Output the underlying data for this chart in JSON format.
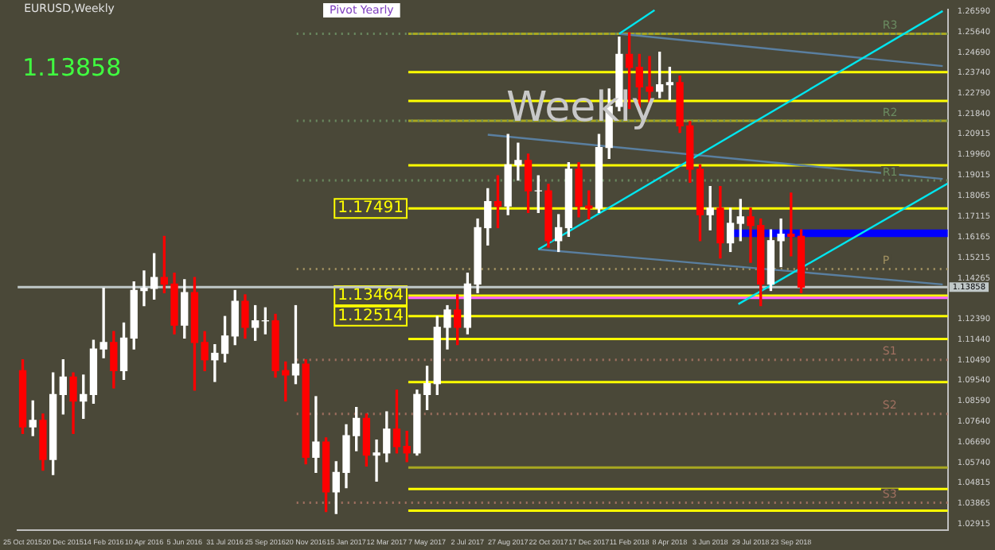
{
  "chart_data": {
    "type": "candlestick",
    "title": "EURUSD,Weekly",
    "annotations": [
      "1.13858",
      "Weekly",
      "Pivot Yearly"
    ],
    "x": [
      "2015-10-25",
      "2015-11-08",
      "2015-11-22",
      "2015-12-06",
      "2015-12-20",
      "2016-01-03",
      "2016-01-17",
      "2016-01-31",
      "2016-02-14",
      "2016-02-28",
      "2016-03-13",
      "2016-03-27",
      "2016-04-10",
      "2016-04-24",
      "2016-05-08",
      "2016-05-22",
      "2016-06-05",
      "2016-06-19",
      "2016-07-03",
      "2016-07-17",
      "2016-07-31",
      "2016-08-14",
      "2016-08-28",
      "2016-09-11",
      "2016-09-25",
      "2016-10-09",
      "2016-10-23",
      "2016-11-06",
      "2016-11-20",
      "2016-12-04",
      "2016-12-18",
      "2017-01-01",
      "2017-01-15",
      "2017-01-29",
      "2017-02-12",
      "2017-02-26",
      "2017-03-12",
      "2017-03-26",
      "2017-04-09",
      "2017-04-23",
      "2017-05-07",
      "2017-05-21",
      "2017-06-04",
      "2017-06-18",
      "2017-07-02",
      "2017-07-16",
      "2017-07-30",
      "2017-08-13",
      "2017-08-27",
      "2017-09-10",
      "2017-09-24",
      "2017-10-08",
      "2017-10-22",
      "2017-11-05",
      "2017-11-19",
      "2017-12-03",
      "2017-12-17",
      "2017-12-31",
      "2018-01-14",
      "2018-01-28",
      "2018-02-11",
      "2018-02-25",
      "2018-03-11",
      "2018-03-25",
      "2018-04-08",
      "2018-04-22",
      "2018-05-06",
      "2018-05-20",
      "2018-06-03",
      "2018-06-17",
      "2018-07-01",
      "2018-07-15",
      "2018-07-29",
      "2018-08-12",
      "2018-08-26",
      "2018-09-09",
      "2018-09-23",
      "2018-10-07"
    ],
    "ohlc": [
      [
        1.1,
        1.105,
        1.071,
        1.074
      ],
      [
        1.074,
        1.086,
        1.07,
        1.077
      ],
      [
        1.077,
        1.08,
        1.054,
        1.059
      ],
      [
        1.059,
        1.099,
        1.052,
        1.089
      ],
      [
        1.089,
        1.105,
        1.08,
        1.097
      ],
      [
        1.097,
        1.099,
        1.071,
        1.086
      ],
      [
        1.086,
        1.098,
        1.078,
        1.089
      ],
      [
        1.089,
        1.114,
        1.085,
        1.11
      ],
      [
        1.11,
        1.138,
        1.106,
        1.113
      ],
      [
        1.113,
        1.118,
        1.092,
        1.1
      ],
      [
        1.1,
        1.122,
        1.096,
        1.115
      ],
      [
        1.115,
        1.141,
        1.11,
        1.137
      ],
      [
        1.137,
        1.146,
        1.13,
        1.138
      ],
      [
        1.138,
        1.154,
        1.133,
        1.143
      ],
      [
        1.143,
        1.162,
        1.136,
        1.14
      ],
      [
        1.14,
        1.145,
        1.117,
        1.121
      ],
      [
        1.121,
        1.142,
        1.115,
        1.136
      ],
      [
        1.136,
        1.143,
        1.091,
        1.113
      ],
      [
        1.113,
        1.118,
        1.1,
        1.105
      ],
      [
        1.105,
        1.112,
        1.095,
        1.108
      ],
      [
        1.108,
        1.125,
        1.104,
        1.116
      ],
      [
        1.116,
        1.137,
        1.112,
        1.132
      ],
      [
        1.132,
        1.135,
        1.115,
        1.12
      ],
      [
        1.12,
        1.13,
        1.114,
        1.123
      ],
      [
        1.123,
        1.129,
        1.117,
        1.123
      ],
      [
        1.123,
        1.126,
        1.097,
        1.1
      ],
      [
        1.1,
        1.104,
        1.086,
        1.098
      ],
      [
        1.098,
        1.13,
        1.094,
        1.103
      ],
      [
        1.103,
        1.105,
        1.057,
        1.06
      ],
      [
        1.06,
        1.088,
        1.053,
        1.067
      ],
      [
        1.067,
        1.069,
        1.035,
        1.044
      ],
      [
        1.044,
        1.058,
        1.034,
        1.053
      ],
      [
        1.053,
        1.075,
        1.046,
        1.07
      ],
      [
        1.07,
        1.083,
        1.063,
        1.078
      ],
      [
        1.078,
        1.08,
        1.056,
        1.061
      ],
      [
        1.061,
        1.068,
        1.049,
        1.062
      ],
      [
        1.062,
        1.081,
        1.058,
        1.073
      ],
      [
        1.073,
        1.091,
        1.062,
        1.065
      ],
      [
        1.065,
        1.072,
        1.058,
        1.062
      ],
      [
        1.062,
        1.091,
        1.061,
        1.089
      ],
      [
        1.089,
        1.102,
        1.082,
        1.094
      ],
      [
        1.094,
        1.125,
        1.089,
        1.12
      ],
      [
        1.12,
        1.13,
        1.11,
        1.128
      ],
      [
        1.128,
        1.135,
        1.112,
        1.12
      ],
      [
        1.12,
        1.145,
        1.117,
        1.14
      ],
      [
        1.14,
        1.17,
        1.136,
        1.166
      ],
      [
        1.166,
        1.184,
        1.158,
        1.178
      ],
      [
        1.178,
        1.19,
        1.166,
        1.176
      ],
      [
        1.176,
        1.209,
        1.172,
        1.195
      ],
      [
        1.195,
        1.205,
        1.188,
        1.197
      ],
      [
        1.197,
        1.2,
        1.173,
        1.183
      ],
      [
        1.183,
        1.19,
        1.173,
        1.183
      ],
      [
        1.183,
        1.186,
        1.157,
        1.16
      ],
      [
        1.16,
        1.172,
        1.155,
        1.166
      ],
      [
        1.166,
        1.196,
        1.162,
        1.193
      ],
      [
        1.193,
        1.196,
        1.171,
        1.176
      ],
      [
        1.176,
        1.183,
        1.17,
        1.175
      ],
      [
        1.175,
        1.209,
        1.173,
        1.203
      ],
      [
        1.203,
        1.23,
        1.198,
        1.222
      ],
      [
        1.222,
        1.254,
        1.22,
        1.246
      ],
      [
        1.246,
        1.256,
        1.221,
        1.24
      ],
      [
        1.24,
        1.246,
        1.22,
        1.231
      ],
      [
        1.231,
        1.245,
        1.224,
        1.229
      ],
      [
        1.229,
        1.247,
        1.226,
        1.232
      ],
      [
        1.232,
        1.24,
        1.225,
        1.233
      ],
      [
        1.233,
        1.236,
        1.21,
        1.213
      ],
      [
        1.213,
        1.215,
        1.187,
        1.193
      ],
      [
        1.193,
        1.195,
        1.16,
        1.172
      ],
      [
        1.172,
        1.185,
        1.165,
        1.175
      ],
      [
        1.175,
        1.185,
        1.152,
        1.159
      ],
      [
        1.159,
        1.175,
        1.155,
        1.168
      ],
      [
        1.168,
        1.179,
        1.16,
        1.171
      ],
      [
        1.171,
        1.175,
        1.15,
        1.167
      ],
      [
        1.167,
        1.17,
        1.13,
        1.14
      ],
      [
        1.14,
        1.165,
        1.137,
        1.16
      ],
      [
        1.16,
        1.17,
        1.148,
        1.163
      ],
      [
        1.163,
        1.182,
        1.153,
        1.162
      ],
      [
        1.162,
        1.165,
        1.136,
        1.1386
      ]
    ],
    "colors": [
      "#ff0000",
      "#ffffff",
      "#ff0000",
      "#ffffff",
      "#ffffff",
      "#ff0000",
      "#ffffff",
      "#ffffff",
      "#ffffff",
      "#ff0000",
      "#ffffff",
      "#ffffff",
      "#ffffff",
      "#ffffff",
      "#ff0000",
      "#ff0000",
      "#ffffff",
      "#ff0000",
      "#ff0000",
      "#ffffff",
      "#ffffff",
      "#ffffff",
      "#ff0000",
      "#ffffff",
      "#ffffff",
      "#ff0000",
      "#ff0000",
      "#ffffff",
      "#ff0000",
      "#ffffff",
      "#ff0000",
      "#ffffff",
      "#ffffff",
      "#ffffff",
      "#ff0000",
      "#ffffff",
      "#ffffff",
      "#ff0000",
      "#ff0000",
      "#ffffff",
      "#ffffff",
      "#ffffff",
      "#ffffff",
      "#ff0000",
      "#ffffff",
      "#ffffff",
      "#ffffff",
      "#ff0000",
      "#ffffff",
      "#ffffff",
      "#ff0000",
      "#ffffff",
      "#ff0000",
      "#ffffff",
      "#ffffff",
      "#ff0000",
      "#ff0000",
      "#ffffff",
      "#ffffff",
      "#ffffff",
      "#ff0000",
      "#ff0000",
      "#ff0000",
      "#ffffff",
      "#ffffff",
      "#ff0000",
      "#ff0000",
      "#ff0000",
      "#ffffff",
      "#ff0000",
      "#ffffff",
      "#ffffff",
      "#ff0000",
      "#ff0000",
      "#ffffff",
      "#ffffff",
      "#ff0000",
      "#ff0000"
    ],
    "series": [
      {
        "type": "line",
        "color": "#00e5ee",
        "x": [
          "2017-10-08",
          "2019-04-21"
        ],
        "values": [
          1.156,
          1.266
        ]
      },
      {
        "type": "line",
        "color": "#00e5ee",
        "x": [
          "2018-01-28",
          "2018-03-18"
        ],
        "values": [
          1.2555,
          1.2664
        ]
      },
      {
        "type": "line",
        "color": "#00e5ee",
        "x": [
          "2018-07-12",
          "2019-04-28"
        ],
        "values": [
          1.1307,
          1.1864
        ]
      },
      {
        "type": "line",
        "color": "#5a7fa0",
        "x": [
          "2017-10-08",
          "2019-04-21"
        ],
        "values": [
          1.156,
          1.1398
        ]
      },
      {
        "type": "line",
        "color": "#5a7fa0",
        "x": [
          "2018-01-28",
          "2019-04-21"
        ],
        "values": [
          1.2555,
          1.2406
        ]
      },
      {
        "type": "line",
        "color": "#5a7fa0",
        "x": [
          "2017-07-30",
          "2019-04-21"
        ],
        "values": [
          1.2089,
          1.1885
        ]
      }
    ],
    "ref_lines": [
      {
        "axis": "y",
        "value": 1.2555,
        "label": null,
        "color": "#a8a820",
        "line_style": "solid"
      },
      {
        "axis": "y",
        "value": 1.2378,
        "label": null,
        "color": "#ffff00",
        "line_style": "solid"
      },
      {
        "axis": "y",
        "value": 1.2245,
        "label": null,
        "color": "#ffff00",
        "line_style": "solid"
      },
      {
        "axis": "y",
        "value": 1.2153,
        "label": null,
        "color": "#a8a820",
        "line_style": "solid"
      },
      {
        "axis": "y",
        "value": 1.1948,
        "label": null,
        "color": "#ffff00",
        "line_style": "solid"
      },
      {
        "axis": "y",
        "value": 1.17491,
        "label": "1.17491",
        "color": "#ffff00",
        "line_style": "solid"
      },
      {
        "axis": "y",
        "value": 1.13464,
        "label": "1.13464",
        "color": "#ffff00",
        "line_style": "solid"
      },
      {
        "axis": "y",
        "value": 1.12514,
        "label": "1.12514",
        "color": "#ffff00",
        "line_style": "solid"
      },
      {
        "axis": "y",
        "value": 1.1146,
        "label": null,
        "color": "#ffff00",
        "line_style": "solid"
      },
      {
        "axis": "y",
        "value": 1.0947,
        "label": null,
        "color": "#ffff00",
        "line_style": "solid"
      },
      {
        "axis": "y",
        "value": 1.0553,
        "label": null,
        "color": "#a8a820",
        "line_style": "solid"
      },
      {
        "axis": "y",
        "value": 1.0454,
        "label": null,
        "color": "#ffff00",
        "line_style": "solid"
      },
      {
        "axis": "y",
        "value": 1.0354,
        "label": null,
        "color": "#ffff00",
        "line_style": "solid"
      },
      {
        "axis": "y",
        "value": 1.1336,
        "label": null,
        "color": "#ff66ff",
        "line_style": "solid"
      },
      {
        "axis": "y",
        "value": 1.2555,
        "label": "R3",
        "color": "#6a8a60",
        "line_style": "dotted"
      },
      {
        "axis": "y",
        "value": 1.2153,
        "label": "R2",
        "color": "#6a8a60",
        "line_style": "dotted"
      },
      {
        "axis": "y",
        "value": 1.1878,
        "label": "R1",
        "color": "#6a8a60",
        "line_style": "dotted"
      },
      {
        "axis": "y",
        "value": 1.1469,
        "label": "P",
        "color": "#a09060",
        "line_style": "dotted"
      },
      {
        "axis": "y",
        "value": 1.105,
        "label": "S1",
        "color": "#a07060",
        "line_style": "dotted"
      },
      {
        "axis": "y",
        "value": 1.08,
        "label": "S2",
        "color": "#a07060",
        "line_style": "dotted"
      },
      {
        "axis": "y",
        "value": 1.039,
        "label": "S3",
        "color": "#a07060",
        "line_style": "dotted"
      },
      {
        "axis": "y",
        "value": 1.13858,
        "label": "1.13858",
        "color": "#c0c8c8"
      }
    ],
    "bands": [
      {
        "axis": "y",
        "from": 1.1617,
        "to": 1.1652,
        "color": "#0000ff"
      }
    ],
    "xlim": [
      "2015-10-18",
      "2019-04-28"
    ],
    "xticks": [
      {
        "value": "2015-10-25",
        "label": "25 Oct 2015"
      },
      {
        "value": "2015-12-20",
        "label": "20 Dec 2015"
      },
      {
        "value": "2016-02-14",
        "label": "14 Feb 2016"
      },
      {
        "value": "2016-04-10",
        "label": "10 Apr 2016"
      },
      {
        "value": "2016-06-05",
        "label": "5 Jun 2016"
      },
      {
        "value": "2016-07-31",
        "label": "31 Jul 2016"
      },
      {
        "value": "2016-09-25",
        "label": "25 Sep 2016"
      },
      {
        "value": "2016-11-20",
        "label": "20 Nov 2016"
      },
      {
        "value": "2017-01-15",
        "label": "15 Jan 2017"
      },
      {
        "value": "2017-03-12",
        "label": "12 Mar 2017"
      },
      {
        "value": "2017-05-07",
        "label": "7 May 2017"
      },
      {
        "value": "2017-07-02",
        "label": "2 Jul 2017"
      },
      {
        "value": "2017-08-27",
        "label": "27 Aug 2017"
      },
      {
        "value": "2017-10-22",
        "label": "22 Oct 2017"
      },
      {
        "value": "2017-12-17",
        "label": "17 Dec 2017"
      },
      {
        "value": "2018-02-11",
        "label": "11 Feb 2018"
      },
      {
        "value": "2018-04-08",
        "label": "8 Apr 2018"
      },
      {
        "value": "2018-06-03",
        "label": "3 Jun 2018"
      },
      {
        "value": "2018-07-29",
        "label": "29 Jul 2018"
      },
      {
        "value": "2018-09-23",
        "label": "23 Sep 2018"
      }
    ],
    "ylim": [
      1.0263,
      1.2667
    ],
    "yticks": [
      {
        "value": 1.2659,
        "label": "1.26590"
      },
      {
        "value": 1.2564,
        "label": "1.25640"
      },
      {
        "value": 1.2469,
        "label": "1.24690"
      },
      {
        "value": 1.2374,
        "label": "1.23740"
      },
      {
        "value": 1.2279,
        "label": "1.22790"
      },
      {
        "value": 1.2184,
        "label": "1.21840"
      },
      {
        "value": 1.20915,
        "label": "1.20915"
      },
      {
        "value": 1.1996,
        "label": "1.19960"
      },
      {
        "value": 1.19015,
        "label": "1.19015"
      },
      {
        "value": 1.18065,
        "label": "1.18065"
      },
      {
        "value": 1.17115,
        "label": "1.17115"
      },
      {
        "value": 1.16165,
        "label": "1.16165"
      },
      {
        "value": 1.15215,
        "label": "1.15215"
      },
      {
        "value": 1.14265,
        "label": "1.14265"
      },
      {
        "value": 1.1239,
        "label": "1.12390"
      },
      {
        "value": 1.1144,
        "label": "1.11440"
      },
      {
        "value": 1.1049,
        "label": "1.10490"
      },
      {
        "value": 1.0954,
        "label": "1.09540"
      },
      {
        "value": 1.0859,
        "label": "1.08590"
      },
      {
        "value": 1.0764,
        "label": "1.07640"
      },
      {
        "value": 1.0669,
        "label": "1.06690"
      },
      {
        "value": 1.0574,
        "label": "1.05740"
      },
      {
        "value": 1.04815,
        "label": "1.04815"
      },
      {
        "value": 1.03865,
        "label": "1.03865"
      },
      {
        "value": 1.02915,
        "label": "1.02915"
      }
    ],
    "grid": false,
    "legend": false
  }
}
